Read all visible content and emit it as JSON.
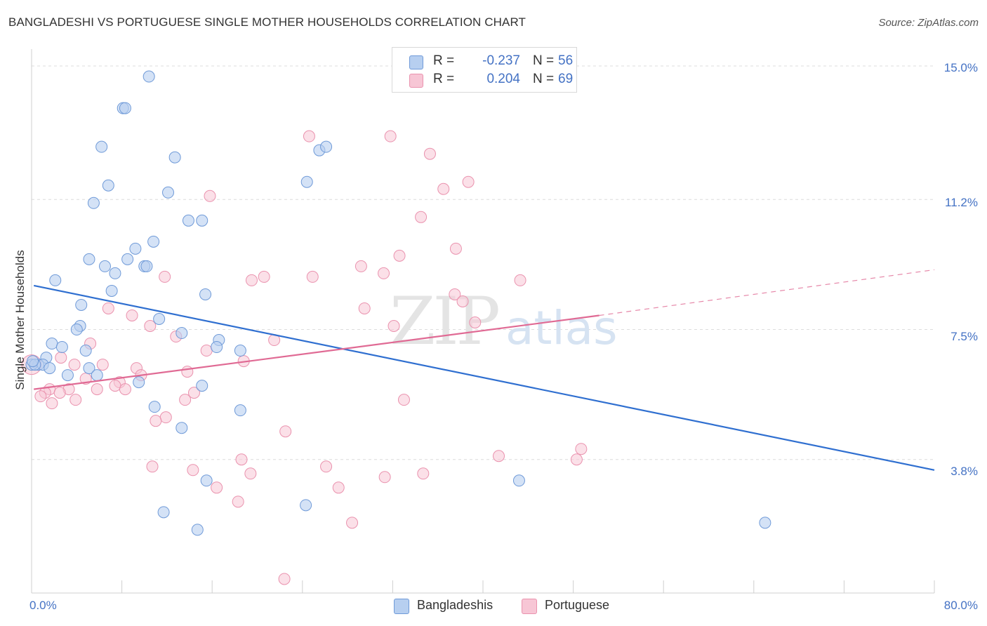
{
  "title": "BANGLADESHI VS PORTUGUESE SINGLE MOTHER HOUSEHOLDS CORRELATION CHART",
  "source": "Source: ZipAtlas.com",
  "watermark": {
    "zip": "ZIP",
    "atlas": "atlas"
  },
  "legend": {
    "rows": [
      {
        "r_label": "R =",
        "r_value": "-0.237",
        "n_label": "N =",
        "n_value": "56"
      },
      {
        "r_label": "R =",
        "r_value": "0.204",
        "n_label": "N =",
        "n_value": "69"
      }
    ]
  },
  "bottom_legend": [
    "Bangladeshis",
    "Portuguese"
  ],
  "colors": {
    "bangladeshis_fill": "#b7cff0",
    "bangladeshis_stroke": "#6f9ad8",
    "bangladeshis_line": "#2f6fd0",
    "portuguese_fill": "#f7c6d5",
    "portuguese_stroke": "#ea92ae",
    "portuguese_line": "#e06a94",
    "tick_text": "#4472C4",
    "grid": "#dcdcdc"
  },
  "chart_data": {
    "type": "scatter",
    "title": "BANGLADESHI VS PORTUGUESE SINGLE MOTHER HOUSEHOLDS CORRELATION CHART",
    "xlabel": "",
    "ylabel": "Single Mother Households",
    "xlim": [
      0,
      80
    ],
    "ylim": [
      0,
      15.4
    ],
    "x_tick_labels": [
      "0.0%",
      "80.0%"
    ],
    "y_ticks": [
      3.8,
      7.5,
      11.2,
      15.0
    ],
    "y_tick_labels": [
      "3.8%",
      "7.5%",
      "11.2%",
      "15.0%"
    ],
    "grid": true,
    "legend_position": "top-center",
    "series": [
      {
        "name": "Bangladeshis",
        "r": -0.237,
        "n": 56,
        "trend": {
          "x": [
            0.2,
            80
          ],
          "y": [
            8.75,
            3.5
          ]
        },
        "points": [
          [
            10.4,
            14.7
          ],
          [
            8.1,
            13.8
          ],
          [
            8.3,
            13.8
          ],
          [
            6.2,
            12.7
          ],
          [
            12.7,
            12.4
          ],
          [
            25.5,
            12.6
          ],
          [
            26.1,
            12.7
          ],
          [
            6.8,
            11.6
          ],
          [
            24.4,
            11.7
          ],
          [
            12.1,
            11.4
          ],
          [
            5.5,
            11.1
          ],
          [
            13.9,
            10.6
          ],
          [
            15.1,
            10.6
          ],
          [
            10.8,
            10.0
          ],
          [
            9.2,
            9.8
          ],
          [
            5.1,
            9.5
          ],
          [
            6.5,
            9.3
          ],
          [
            8.5,
            9.5
          ],
          [
            10.0,
            9.3
          ],
          [
            10.2,
            9.3
          ],
          [
            7.4,
            9.1
          ],
          [
            2.1,
            8.9
          ],
          [
            7.1,
            8.6
          ],
          [
            15.4,
            8.5
          ],
          [
            4.4,
            8.2
          ],
          [
            11.3,
            7.8
          ],
          [
            4.3,
            7.6
          ],
          [
            4.0,
            7.5
          ],
          [
            13.3,
            7.4
          ],
          [
            16.6,
            7.2
          ],
          [
            1.8,
            7.1
          ],
          [
            2.7,
            7.0
          ],
          [
            4.8,
            6.9
          ],
          [
            16.4,
            7.0
          ],
          [
            18.5,
            6.9
          ],
          [
            1.3,
            6.7
          ],
          [
            0.6,
            6.5
          ],
          [
            1.0,
            6.5
          ],
          [
            1.6,
            6.4
          ],
          [
            5.1,
            6.4
          ],
          [
            3.2,
            6.2
          ],
          [
            5.8,
            6.2
          ],
          [
            9.5,
            6.0
          ],
          [
            15.1,
            5.9
          ],
          [
            10.9,
            5.3
          ],
          [
            18.5,
            5.2
          ],
          [
            13.3,
            4.7
          ],
          [
            43.2,
            3.2
          ],
          [
            15.5,
            3.2
          ],
          [
            24.3,
            2.5
          ],
          [
            11.7,
            2.3
          ],
          [
            14.7,
            1.8
          ],
          [
            65.0,
            2.0
          ],
          [
            0.0,
            6.5
          ],
          [
            0.3,
            6.5
          ],
          [
            0.1,
            6.6
          ]
        ]
      },
      {
        "name": "Portuguese",
        "r": 0.204,
        "n": 69,
        "trend": {
          "x": [
            0.2,
            50.3
          ],
          "y": [
            5.8,
            7.9
          ]
        },
        "trend_dashed": {
          "x": [
            50.3,
            80
          ],
          "y": [
            7.9,
            9.2
          ]
        },
        "points": [
          [
            24.6,
            13.0
          ],
          [
            31.8,
            13.0
          ],
          [
            35.3,
            12.5
          ],
          [
            38.7,
            11.7
          ],
          [
            36.5,
            11.5
          ],
          [
            15.8,
            11.3
          ],
          [
            34.5,
            10.7
          ],
          [
            37.6,
            9.8
          ],
          [
            32.6,
            9.6
          ],
          [
            29.2,
            9.3
          ],
          [
            31.2,
            9.1
          ],
          [
            11.8,
            9.0
          ],
          [
            20.6,
            9.0
          ],
          [
            24.9,
            9.0
          ],
          [
            19.5,
            8.9
          ],
          [
            43.3,
            8.9
          ],
          [
            37.5,
            8.5
          ],
          [
            38.2,
            8.3
          ],
          [
            6.8,
            8.1
          ],
          [
            29.5,
            8.1
          ],
          [
            8.9,
            7.9
          ],
          [
            10.5,
            7.6
          ],
          [
            32.1,
            7.6
          ],
          [
            39.3,
            7.7
          ],
          [
            12.8,
            7.3
          ],
          [
            21.5,
            7.2
          ],
          [
            5.2,
            7.1
          ],
          [
            15.5,
            6.9
          ],
          [
            2.6,
            6.7
          ],
          [
            18.8,
            6.6
          ],
          [
            0.0,
            6.5
          ],
          [
            3.8,
            6.5
          ],
          [
            6.3,
            6.5
          ],
          [
            9.3,
            6.4
          ],
          [
            9.7,
            6.2
          ],
          [
            13.8,
            6.3
          ],
          [
            4.8,
            6.1
          ],
          [
            7.8,
            6.0
          ],
          [
            1.6,
            5.8
          ],
          [
            3.3,
            5.8
          ],
          [
            5.8,
            5.8
          ],
          [
            7.4,
            5.9
          ],
          [
            8.3,
            5.8
          ],
          [
            14.4,
            5.7
          ],
          [
            1.2,
            5.7
          ],
          [
            2.5,
            5.7
          ],
          [
            0.8,
            5.6
          ],
          [
            13.6,
            5.5
          ],
          [
            3.9,
            5.5
          ],
          [
            33.0,
            5.5
          ],
          [
            1.8,
            5.4
          ],
          [
            11.9,
            5.0
          ],
          [
            11.0,
            4.9
          ],
          [
            22.5,
            4.6
          ],
          [
            48.7,
            4.1
          ],
          [
            48.3,
            3.8
          ],
          [
            41.4,
            3.9
          ],
          [
            18.6,
            3.8
          ],
          [
            10.7,
            3.6
          ],
          [
            14.3,
            3.5
          ],
          [
            26.1,
            3.6
          ],
          [
            19.4,
            3.4
          ],
          [
            34.7,
            3.4
          ],
          [
            31.3,
            3.3
          ],
          [
            27.2,
            3.0
          ],
          [
            16.4,
            3.0
          ],
          [
            18.3,
            2.6
          ],
          [
            28.4,
            2.0
          ],
          [
            22.4,
            0.4
          ]
        ]
      }
    ]
  }
}
